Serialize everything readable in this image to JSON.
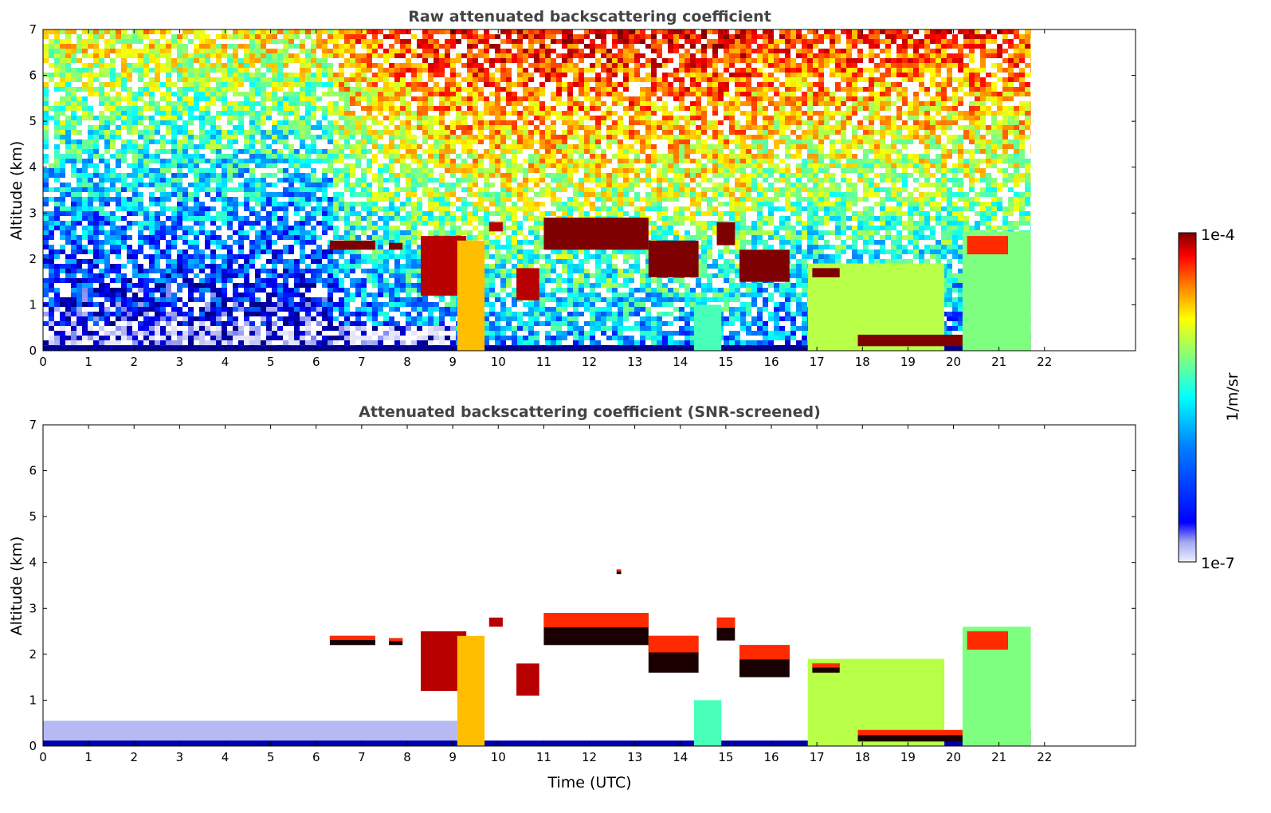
{
  "chart_data": [
    {
      "type": "heatmap",
      "title": "Raw attenuated backscattering coefficient",
      "xlabel": "",
      "ylabel": "Altitude (km)",
      "xlim": [
        0,
        24
      ],
      "ylim": [
        0,
        7
      ],
      "x_ticks": [
        "0",
        "1",
        "2",
        "3",
        "4",
        "5",
        "6",
        "7",
        "8",
        "9",
        "10",
        "11",
        "12",
        "13",
        "14",
        "15",
        "16",
        "17",
        "18",
        "19",
        "20",
        "21",
        "22"
      ],
      "y_ticks": [
        "0",
        "1",
        "2",
        "3",
        "4",
        "5",
        "6",
        "7"
      ],
      "data_end_time": 21.7,
      "colormap": "jet",
      "color_scale": "log",
      "features": [
        {
          "kind": "surface_layer",
          "x": [
            0,
            21.7
          ],
          "y": [
            0,
            0.12
          ],
          "level": 0.12
        },
        {
          "kind": "cloud",
          "x": [
            6.3,
            7.3
          ],
          "y": [
            2.2,
            2.4
          ],
          "level": 1.0
        },
        {
          "kind": "cloud",
          "x": [
            7.6,
            7.9
          ],
          "y": [
            2.2,
            2.35
          ],
          "level": 1.0
        },
        {
          "kind": "cloud",
          "x": [
            8.3,
            9.3
          ],
          "y": [
            1.2,
            2.5
          ],
          "level": 0.95
        },
        {
          "kind": "precipitation",
          "x": [
            9.1,
            9.7
          ],
          "y": [
            0,
            2.4
          ],
          "level": 0.72
        },
        {
          "kind": "cloud",
          "x": [
            9.8,
            10.1
          ],
          "y": [
            2.6,
            2.8
          ],
          "level": 0.95
        },
        {
          "kind": "cloud",
          "x": [
            10.4,
            10.9
          ],
          "y": [
            1.1,
            1.8
          ],
          "level": 0.95
        },
        {
          "kind": "cloud",
          "x": [
            11.0,
            13.3
          ],
          "y": [
            2.2,
            2.9
          ],
          "level": 1.0
        },
        {
          "kind": "cloud",
          "x": [
            13.3,
            14.4
          ],
          "y": [
            1.6,
            2.4
          ],
          "level": 1.0
        },
        {
          "kind": "cloud",
          "x": [
            14.8,
            15.2
          ],
          "y": [
            2.3,
            2.8
          ],
          "level": 1.0
        },
        {
          "kind": "cloud",
          "x": [
            15.3,
            16.4
          ],
          "y": [
            1.5,
            2.2
          ],
          "level": 1.0
        },
        {
          "kind": "boundary_layer",
          "x": [
            14.3,
            14.9
          ],
          "y": [
            0,
            1.0
          ],
          "level": 0.5
        },
        {
          "kind": "boundary_layer",
          "x": [
            16.8,
            19.8
          ],
          "y": [
            0,
            1.9
          ],
          "level": 0.6
        },
        {
          "kind": "cloud",
          "x": [
            16.9,
            17.5
          ],
          "y": [
            1.6,
            1.8
          ],
          "level": 1.0
        },
        {
          "kind": "cloud",
          "x": [
            17.9,
            21.7
          ],
          "y": [
            0.1,
            0.35
          ],
          "level": 1.0
        },
        {
          "kind": "boundary_layer",
          "x": [
            20.2,
            21.7
          ],
          "y": [
            0,
            2.6
          ],
          "level": 0.55
        },
        {
          "kind": "cloud",
          "x": [
            20.3,
            21.2
          ],
          "y": [
            2.1,
            2.5
          ],
          "level": 0.85
        }
      ]
    },
    {
      "type": "heatmap",
      "title": "Attenuated backscattering coefficient (SNR-screened)",
      "xlabel": "Time (UTC)",
      "ylabel": "Altitude (km)",
      "xlim": [
        0,
        24
      ],
      "ylim": [
        0,
        7
      ],
      "x_ticks": [
        "0",
        "1",
        "2",
        "3",
        "4",
        "5",
        "6",
        "7",
        "8",
        "9",
        "10",
        "11",
        "12",
        "13",
        "14",
        "15",
        "16",
        "17",
        "18",
        "19",
        "20",
        "21",
        "22"
      ],
      "y_ticks": [
        "0",
        "1",
        "2",
        "3",
        "4",
        "5",
        "6",
        "7"
      ],
      "data_end_time": 21.7,
      "colormap": "jet",
      "color_scale": "log",
      "features": [
        {
          "kind": "surface_layer",
          "x": [
            0,
            9.1
          ],
          "y": [
            0,
            0.55
          ],
          "level": 0.05
        },
        {
          "kind": "surface_layer",
          "x": [
            0,
            21.7
          ],
          "y": [
            0,
            0.12
          ],
          "level": 0.14
        },
        {
          "kind": "cloud",
          "x": [
            6.3,
            7.3
          ],
          "y": [
            2.2,
            2.4
          ],
          "level": 1.0
        },
        {
          "kind": "cloud",
          "x": [
            7.6,
            7.9
          ],
          "y": [
            2.2,
            2.35
          ],
          "level": 1.0
        },
        {
          "kind": "cloud",
          "x": [
            8.3,
            9.3
          ],
          "y": [
            1.2,
            2.5
          ],
          "level": 0.95
        },
        {
          "kind": "precipitation",
          "x": [
            9.1,
            9.7
          ],
          "y": [
            0,
            2.4
          ],
          "level": 0.72
        },
        {
          "kind": "cloud",
          "x": [
            9.8,
            10.1
          ],
          "y": [
            2.6,
            2.8
          ],
          "level": 0.95
        },
        {
          "kind": "cloud",
          "x": [
            10.4,
            10.9
          ],
          "y": [
            1.1,
            1.8
          ],
          "level": 0.95
        },
        {
          "kind": "cloud",
          "x": [
            11.0,
            13.3
          ],
          "y": [
            2.2,
            2.9
          ],
          "level": 1.0
        },
        {
          "kind": "cloud",
          "x": [
            13.3,
            14.4
          ],
          "y": [
            1.6,
            2.4
          ],
          "level": 1.0
        },
        {
          "kind": "cloud",
          "x": [
            12.6,
            12.7
          ],
          "y": [
            3.75,
            3.85
          ],
          "level": 1.0
        },
        {
          "kind": "cloud",
          "x": [
            14.8,
            15.2
          ],
          "y": [
            2.3,
            2.8
          ],
          "level": 1.0
        },
        {
          "kind": "cloud",
          "x": [
            15.3,
            16.4
          ],
          "y": [
            1.5,
            2.2
          ],
          "level": 1.0
        },
        {
          "kind": "boundary_layer",
          "x": [
            14.3,
            14.9
          ],
          "y": [
            0,
            1.0
          ],
          "level": 0.5
        },
        {
          "kind": "boundary_layer",
          "x": [
            16.8,
            19.8
          ],
          "y": [
            0,
            1.9
          ],
          "level": 0.6
        },
        {
          "kind": "cloud",
          "x": [
            16.9,
            17.5
          ],
          "y": [
            1.6,
            1.8
          ],
          "level": 1.0
        },
        {
          "kind": "cloud",
          "x": [
            17.9,
            21.7
          ],
          "y": [
            0.1,
            0.35
          ],
          "level": 1.0
        },
        {
          "kind": "boundary_layer",
          "x": [
            20.2,
            21.7
          ],
          "y": [
            0,
            2.6
          ],
          "level": 0.55
        },
        {
          "kind": "cloud",
          "x": [
            20.3,
            21.2
          ],
          "y": [
            2.1,
            2.5
          ],
          "level": 0.85
        }
      ]
    }
  ],
  "colorbar": {
    "label": "1/m/sr",
    "max_label": "1e-4",
    "min_label": "1e-7",
    "colormap": "jet",
    "scale": "log"
  },
  "colors": {
    "jet": [
      "#00007f",
      "#0000ff",
      "#007fff",
      "#00ffff",
      "#7fff7f",
      "#ffff00",
      "#ff7f00",
      "#ff0000",
      "#7f0000"
    ],
    "low_pale": [
      "#e6e6fa",
      "#c8caf6",
      "#a3a8f2",
      "#7a82f2"
    ],
    "title": "#444444",
    "axis": "#000000"
  }
}
